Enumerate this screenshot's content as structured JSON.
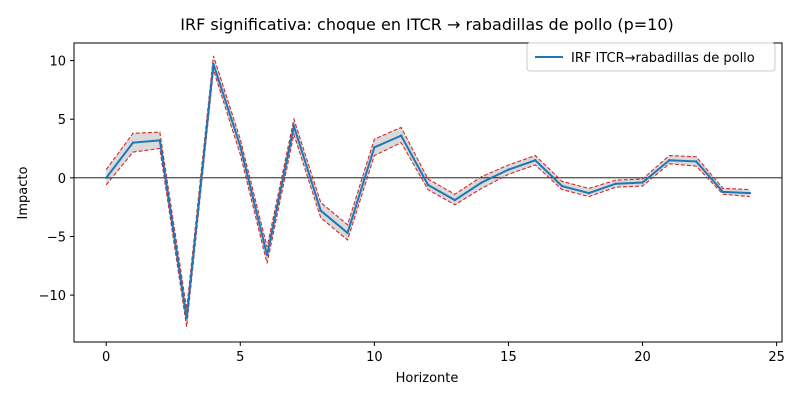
{
  "chart_data": {
    "type": "line",
    "title": "IRF significativa: choque en ITCR → rabadillas de pollo (p=10)",
    "xlabel": "Horizonte",
    "ylabel": "Impacto",
    "xlim": [
      -1.2,
      25.2
    ],
    "ylim": [
      -14,
      11.5
    ],
    "xticks": [
      0,
      5,
      10,
      15,
      20,
      25
    ],
    "yticks": [
      -10,
      -5,
      0,
      5,
      10
    ],
    "legend_position": "top-right",
    "grid": false,
    "zero_line": true,
    "colors": {
      "irf": "#1f77b4",
      "bands": "#d62728",
      "fill": "#d3d3d3"
    },
    "x": [
      0,
      1,
      2,
      3,
      4,
      5,
      6,
      7,
      8,
      9,
      10,
      11,
      12,
      13,
      14,
      15,
      16,
      17,
      18,
      19,
      20,
      21,
      22,
      23,
      24
    ],
    "series": [
      {
        "name": "IRF ITCR→rabadillas de pollo",
        "values": [
          0.0,
          3.0,
          3.2,
          -12.0,
          9.7,
          2.7,
          -6.6,
          4.4,
          -2.8,
          -4.7,
          2.6,
          3.6,
          -0.6,
          -1.9,
          -0.4,
          0.7,
          1.5,
          -0.7,
          -1.3,
          -0.5,
          -0.4,
          1.5,
          1.4,
          -1.2,
          -1.3
        ]
      }
    ],
    "band_upper": [
      0.7,
      3.8,
      3.9,
      -11.2,
      10.4,
      3.3,
      -5.9,
      5.0,
      -2.1,
      -4.0,
      3.3,
      4.3,
      -0.1,
      -1.4,
      0.1,
      1.1,
      1.9,
      -0.3,
      -0.9,
      -0.2,
      -0.1,
      1.9,
      1.8,
      -0.9,
      -1.0
    ],
    "band_lower": [
      -0.6,
      2.2,
      2.5,
      -12.7,
      9.2,
      2.0,
      -7.3,
      3.7,
      -3.4,
      -5.3,
      1.9,
      3.0,
      -1.0,
      -2.3,
      -0.9,
      0.3,
      1.1,
      -1.0,
      -1.6,
      -0.8,
      -0.7,
      1.2,
      1.0,
      -1.4,
      -1.6
    ]
  }
}
